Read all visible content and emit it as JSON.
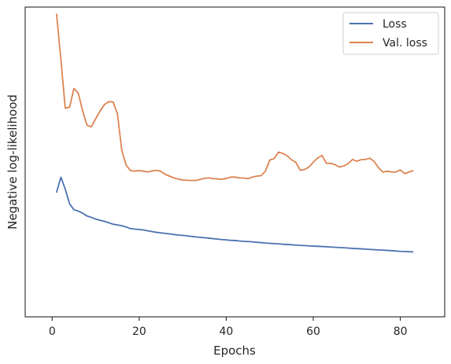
{
  "chart_data": {
    "type": "line",
    "xlabel": "Epochs",
    "ylabel": "Negative log-likelihood",
    "xlim": [
      -6.2,
      90.2
    ],
    "x_ticks": [
      0,
      20,
      40,
      60,
      80
    ],
    "y_tick_labels": "none",
    "ylim": [
      0.7,
      1.0
    ],
    "legend_position": "top-right",
    "x": [
      1,
      2,
      3,
      4,
      5,
      6,
      7,
      8,
      9,
      10,
      11,
      12,
      13,
      14,
      15,
      16,
      17,
      18,
      19,
      20,
      21,
      22,
      23,
      24,
      25,
      26,
      27,
      28,
      29,
      30,
      31,
      32,
      33,
      34,
      35,
      36,
      37,
      38,
      39,
      40,
      41,
      42,
      43,
      44,
      45,
      46,
      47,
      48,
      49,
      50,
      51,
      52,
      53,
      54,
      55,
      56,
      57,
      58,
      59,
      60,
      61,
      62,
      63,
      64,
      65,
      66,
      67,
      68,
      69,
      70,
      71,
      72,
      73,
      74,
      75,
      76,
      77,
      78,
      79,
      80,
      81,
      82,
      83
    ],
    "series": [
      {
        "name": "Loss",
        "color": "#4c72b0",
        "values": [
          0.8203,
          0.8352,
          0.8238,
          0.8095,
          0.8037,
          0.8024,
          0.8004,
          0.7977,
          0.7963,
          0.7947,
          0.7935,
          0.7925,
          0.7911,
          0.7897,
          0.789,
          0.7882,
          0.787,
          0.7855,
          0.785,
          0.7846,
          0.7841,
          0.7833,
          0.7825,
          0.7818,
          0.7813,
          0.7808,
          0.7803,
          0.7797,
          0.7792,
          0.7789,
          0.7784,
          0.7779,
          0.7774,
          0.777,
          0.7766,
          0.7762,
          0.7757,
          0.7753,
          0.7748,
          0.7745,
          0.7741,
          0.7739,
          0.7735,
          0.7731,
          0.7729,
          0.7726,
          0.7722,
          0.7719,
          0.7715,
          0.7712,
          0.7709,
          0.7707,
          0.7703,
          0.7701,
          0.7698,
          0.7695,
          0.7692,
          0.769,
          0.7687,
          0.7685,
          0.7683,
          0.7681,
          0.7679,
          0.7676,
          0.7674,
          0.7671,
          0.7669,
          0.7666,
          0.7663,
          0.7661,
          0.7658,
          0.7656,
          0.7653,
          0.765,
          0.7648,
          0.7646,
          0.7643,
          0.7641,
          0.7638,
          0.7634,
          0.7633,
          0.7631,
          0.7628
        ]
      },
      {
        "name": "Val. loss",
        "color": "#dd8452",
        "values": [
          0.9936,
          0.9498,
          0.9021,
          0.903,
          0.9212,
          0.9166,
          0.8996,
          0.8855,
          0.884,
          0.8918,
          0.8993,
          0.9055,
          0.9084,
          0.9081,
          0.8966,
          0.8611,
          0.8469,
          0.8416,
          0.8412,
          0.8416,
          0.841,
          0.8403,
          0.8413,
          0.8419,
          0.8408,
          0.838,
          0.8362,
          0.8346,
          0.8333,
          0.8326,
          0.8322,
          0.8321,
          0.8321,
          0.8331,
          0.8342,
          0.8346,
          0.8338,
          0.8336,
          0.8332,
          0.834,
          0.8353,
          0.8353,
          0.8346,
          0.8345,
          0.8338,
          0.8353,
          0.8363,
          0.8367,
          0.8411,
          0.8518,
          0.8533,
          0.8595,
          0.8583,
          0.856,
          0.8521,
          0.8496,
          0.842,
          0.8427,
          0.8451,
          0.8497,
          0.8538,
          0.8563,
          0.8487,
          0.8487,
          0.8474,
          0.8451,
          0.8461,
          0.8483,
          0.8524,
          0.8507,
          0.8522,
          0.8525,
          0.8536,
          0.8504,
          0.8443,
          0.8402,
          0.841,
          0.8403,
          0.8403,
          0.8422,
          0.8387,
          0.8402,
          0.8416
        ]
      }
    ]
  }
}
